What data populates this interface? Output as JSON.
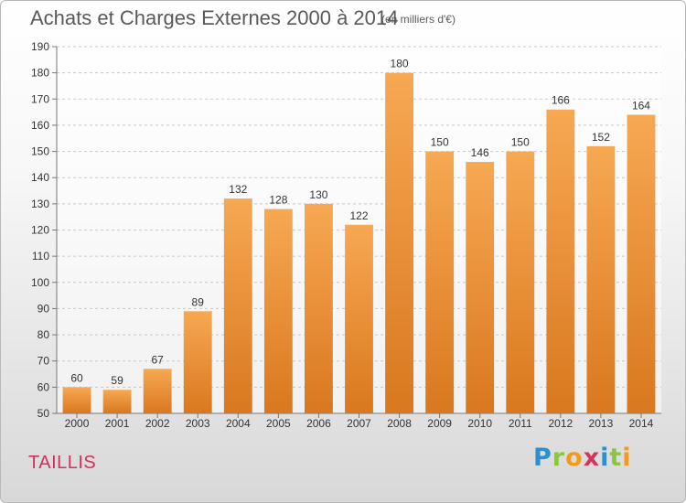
{
  "header": {
    "title": "Achats et Charges Externes 2000 à 2014",
    "subtitle": "(en milliers d'€)"
  },
  "commune": "TAILLIS",
  "logo": {
    "letters": [
      "P",
      "r",
      "o",
      "x",
      "i",
      "t",
      "i"
    ]
  },
  "colors": {
    "bar_top": "#f7a853",
    "bar_bottom": "#d9781e",
    "title_text": "#5a5a5a",
    "commune_text": "#d0305d"
  },
  "chart_data": {
    "type": "bar",
    "title": "Achats et Charges Externes 2000 à 2014",
    "subtitle": "(en milliers d'€)",
    "xlabel": "",
    "ylabel": "",
    "ylim": [
      50,
      190
    ],
    "yticks": [
      50,
      60,
      70,
      80,
      90,
      100,
      110,
      120,
      130,
      140,
      150,
      160,
      170,
      180,
      190
    ],
    "grid": "horizontal-dashed",
    "categories": [
      "2000",
      "2001",
      "2002",
      "2003",
      "2004",
      "2005",
      "2006",
      "2007",
      "2008",
      "2009",
      "2010",
      "2011",
      "2012",
      "2013",
      "2014"
    ],
    "values": [
      60,
      59,
      67,
      89,
      132,
      128,
      130,
      122,
      180,
      150,
      146,
      150,
      166,
      152,
      164
    ]
  }
}
